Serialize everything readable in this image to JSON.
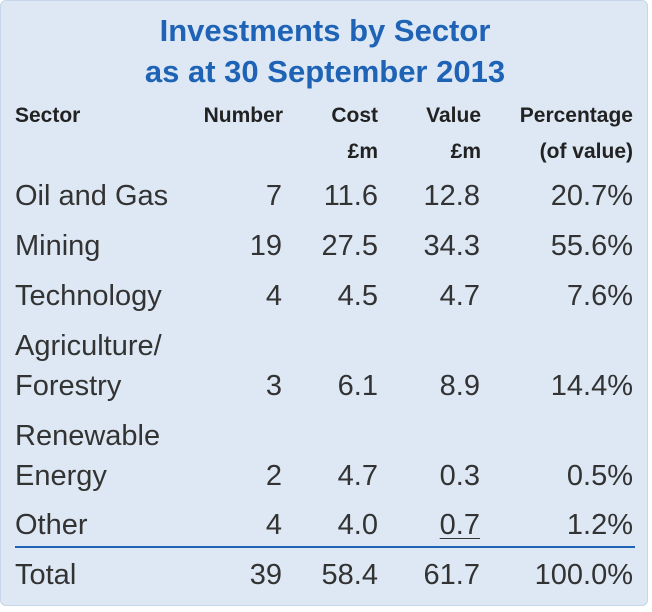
{
  "title": {
    "line1": "Investments by Sector",
    "line2": "as at 30 September 2013"
  },
  "headers": {
    "sector": "Sector",
    "number": "Number",
    "cost_line1": "Cost",
    "cost_line2": "£m",
    "value_line1": "Value",
    "value_line2": "£m",
    "pct_line1": "Percentage",
    "pct_line2": "(of value)"
  },
  "rows": [
    {
      "sector": "Oil and Gas",
      "number": "7",
      "cost": "11.6",
      "value": "12.8",
      "pct": "20.7%"
    },
    {
      "sector": "Mining",
      "number": "19",
      "cost": "27.5",
      "value": "34.3",
      "pct": "55.6%"
    },
    {
      "sector": "Technology",
      "number": "4",
      "cost": "4.5",
      "value": "4.7",
      "pct": "7.6%"
    },
    {
      "sector_line1": "Agriculture/",
      "sector_line2": "Forestry",
      "number": "3",
      "cost": "6.1",
      "value": "8.9",
      "pct": "14.4%"
    },
    {
      "sector_line1": "Renewable",
      "sector_line2": "Energy",
      "number": "2",
      "cost": "4.7",
      "value": "0.3",
      "pct": "0.5%"
    },
    {
      "sector": "Other",
      "number": "4",
      "cost": "4.0",
      "value": "0.7",
      "pct": "1.2%"
    }
  ],
  "total": {
    "sector": "Total",
    "number": "39",
    "cost": "58.4",
    "value": "61.7",
    "pct": "100.0%"
  },
  "colors": {
    "title": "#1e63b5",
    "panel_background": "#dde8f4",
    "divider": "#1e63b5"
  }
}
